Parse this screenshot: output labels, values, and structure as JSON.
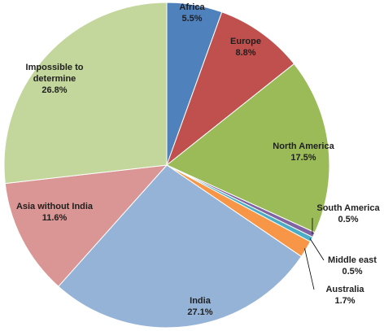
{
  "chart_data": {
    "type": "pie",
    "title": "",
    "start_angle_deg": 0,
    "direction": "clockwise",
    "slices": [
      {
        "category": "Africa",
        "value": 5.5,
        "value_label": "5.5%",
        "color": "#4f81bd"
      },
      {
        "category": "Europe",
        "value": 8.8,
        "value_label": "8.8%",
        "color": "#c0504d"
      },
      {
        "category": "North America",
        "value": 17.5,
        "value_label": "17.5%",
        "color": "#9bbb59"
      },
      {
        "category": "South America",
        "value": 0.5,
        "value_label": "0.5%",
        "color": "#8064a2"
      },
      {
        "category": "Middle east",
        "value": 0.5,
        "value_label": "0.5%",
        "color": "#4bacc6"
      },
      {
        "category": "Australia",
        "value": 1.7,
        "value_label": "1.7%",
        "color": "#f79646"
      },
      {
        "category": "India",
        "value": 27.1,
        "value_label": "27.1%",
        "color": "#95b3d7"
      },
      {
        "category": "Asia without India",
        "value": 11.6,
        "value_label": "11.6%",
        "color": "#d99694"
      },
      {
        "category": "Impossible to determine",
        "value": 26.8,
        "value_label": "26.8%",
        "color": "#c3d69b"
      }
    ]
  }
}
